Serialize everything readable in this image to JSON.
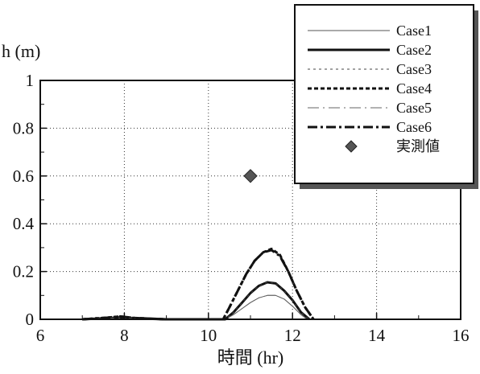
{
  "chart_data": {
    "type": "line",
    "title": "",
    "xlabel": "時間 (hr)",
    "ylabel": "h (m)",
    "xlim": [
      6,
      16
    ],
    "ylim": [
      0,
      1
    ],
    "x_ticks": [
      "6",
      "8",
      "10",
      "12",
      "14",
      "16"
    ],
    "y_ticks": [
      "0",
      "0.2",
      "0.4",
      "0.6",
      "0.8",
      "1"
    ],
    "grid": "dotted",
    "legend_position": "top-right",
    "series": [
      {
        "name": "Case1",
        "style": "thin-solid",
        "color": "#555555",
        "points": [
          [
            7.0,
            0
          ],
          [
            7.6,
            0.004
          ],
          [
            7.9,
            0.006
          ],
          [
            8.2,
            0.003
          ],
          [
            9.0,
            0
          ],
          [
            10.4,
            0
          ],
          [
            10.6,
            0.02
          ],
          [
            10.8,
            0.045
          ],
          [
            11.0,
            0.07
          ],
          [
            11.2,
            0.09
          ],
          [
            11.4,
            0.1
          ],
          [
            11.6,
            0.1
          ],
          [
            11.8,
            0.085
          ],
          [
            12.0,
            0.055
          ],
          [
            12.2,
            0.02
          ],
          [
            12.35,
            0
          ]
        ]
      },
      {
        "name": "Case2",
        "style": "thick-solid",
        "color": "#111111",
        "points": [
          [
            7.0,
            0
          ],
          [
            7.6,
            0.005
          ],
          [
            7.9,
            0.008
          ],
          [
            8.2,
            0.004
          ],
          [
            9.0,
            0
          ],
          [
            10.4,
            0
          ],
          [
            10.6,
            0.03
          ],
          [
            10.8,
            0.07
          ],
          [
            11.0,
            0.11
          ],
          [
            11.2,
            0.14
          ],
          [
            11.4,
            0.155
          ],
          [
            11.6,
            0.15
          ],
          [
            11.8,
            0.12
          ],
          [
            12.0,
            0.08
          ],
          [
            12.2,
            0.03
          ],
          [
            12.4,
            0
          ]
        ]
      },
      {
        "name": "Case3",
        "style": "thin-dashed",
        "color": "#444444",
        "points": [
          [
            7.0,
            0
          ],
          [
            7.6,
            0.005
          ],
          [
            7.9,
            0.008
          ],
          [
            8.2,
            0.004
          ],
          [
            9.0,
            0
          ],
          [
            10.4,
            0
          ],
          [
            10.6,
            0.03
          ],
          [
            10.8,
            0.07
          ],
          [
            11.0,
            0.11
          ],
          [
            11.2,
            0.14
          ],
          [
            11.4,
            0.155
          ],
          [
            11.6,
            0.15
          ],
          [
            11.8,
            0.12
          ],
          [
            12.0,
            0.08
          ],
          [
            12.2,
            0.03
          ],
          [
            12.4,
            0
          ]
        ]
      },
      {
        "name": "Case4",
        "style": "thick-dashed",
        "color": "#111111",
        "points": [
          [
            7.0,
            0
          ],
          [
            7.6,
            0.007
          ],
          [
            7.9,
            0.012
          ],
          [
            8.2,
            0.006
          ],
          [
            9.0,
            0
          ],
          [
            10.35,
            0
          ],
          [
            10.5,
            0.05
          ],
          [
            10.7,
            0.12
          ],
          [
            10.9,
            0.19
          ],
          [
            11.1,
            0.245
          ],
          [
            11.3,
            0.28
          ],
          [
            11.5,
            0.295
          ],
          [
            11.7,
            0.27
          ],
          [
            11.9,
            0.2
          ],
          [
            12.1,
            0.12
          ],
          [
            12.3,
            0.05
          ],
          [
            12.5,
            0
          ]
        ]
      },
      {
        "name": "Case5",
        "style": "thin-dashdot",
        "color": "#666666",
        "points": [
          [
            7.0,
            0
          ],
          [
            7.6,
            0.004
          ],
          [
            7.9,
            0.006
          ],
          [
            8.2,
            0.003
          ],
          [
            9.0,
            0
          ],
          [
            10.4,
            0
          ],
          [
            10.6,
            0.02
          ],
          [
            10.8,
            0.045
          ],
          [
            11.0,
            0.07
          ],
          [
            11.2,
            0.09
          ],
          [
            11.4,
            0.1
          ],
          [
            11.6,
            0.1
          ],
          [
            11.8,
            0.085
          ],
          [
            12.0,
            0.055
          ],
          [
            12.2,
            0.02
          ],
          [
            12.35,
            0
          ]
        ]
      },
      {
        "name": "Case6",
        "style": "thick-dashdot",
        "color": "#111111",
        "points": [
          [
            7.0,
            0
          ],
          [
            7.6,
            0.007
          ],
          [
            7.9,
            0.012
          ],
          [
            8.2,
            0.006
          ],
          [
            9.0,
            0
          ],
          [
            10.35,
            0
          ],
          [
            10.5,
            0.05
          ],
          [
            10.7,
            0.12
          ],
          [
            10.9,
            0.19
          ],
          [
            11.1,
            0.245
          ],
          [
            11.3,
            0.28
          ],
          [
            11.5,
            0.29
          ],
          [
            11.7,
            0.265
          ],
          [
            11.9,
            0.2
          ],
          [
            12.1,
            0.12
          ],
          [
            12.3,
            0.05
          ],
          [
            12.5,
            0
          ]
        ]
      }
    ],
    "observed": {
      "name": "実測値",
      "color": "#555555",
      "points": [
        [
          11.0,
          0.6
        ]
      ]
    }
  }
}
